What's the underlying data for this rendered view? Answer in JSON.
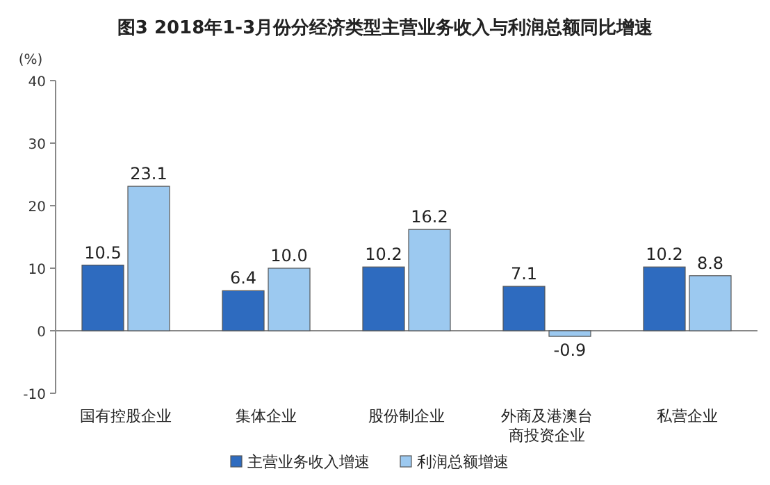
{
  "chart_data": {
    "type": "bar",
    "title": "图3 2018年1-3月份分经济类型主营业务收入与利润总额同比增速",
    "ylabel": "(%)",
    "categories": [
      "国有控股企业",
      "集体企业",
      "股份制企业",
      "外商及港澳台商投资企业",
      "私营企业"
    ],
    "series": [
      {
        "name": "主营业务收入增速",
        "color": "#2e6bbf",
        "values": [
          10.5,
          6.4,
          10.2,
          7.1,
          10.2
        ],
        "value_labels": [
          "10.5",
          "6.4",
          "10.2",
          "7.1",
          "10.2"
        ]
      },
      {
        "name": "利润总额增速",
        "color": "#9cc9f0",
        "values": [
          23.1,
          10.0,
          16.2,
          -0.9,
          8.8
        ],
        "value_labels": [
          "23.1",
          "10.0",
          "16.2",
          "-0.9",
          "8.8"
        ]
      }
    ],
    "ylim": [
      -10,
      40
    ],
    "yticks": [
      -10,
      0,
      10,
      20,
      30,
      40
    ],
    "legend": "bottom"
  }
}
